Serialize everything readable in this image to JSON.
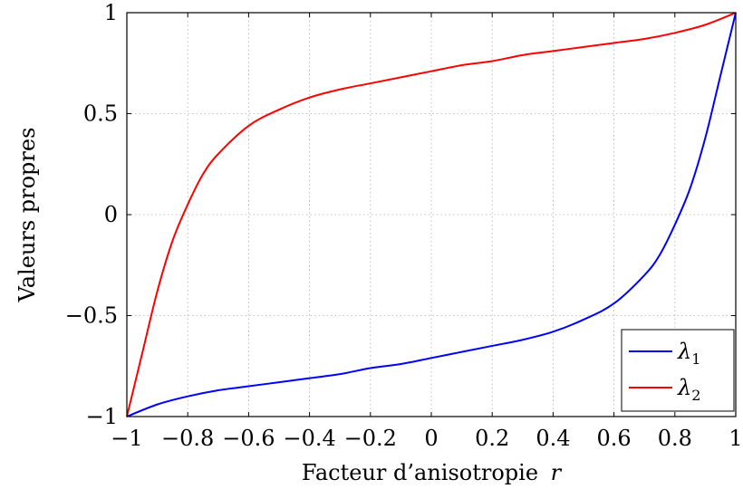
{
  "chart_data": {
    "type": "line",
    "xlabel": "Facteur d’anisotropie",
    "xlabel_var": "r",
    "ylabel": "Valeurs propres",
    "xlim": [
      -1,
      1
    ],
    "ylim": [
      -1,
      1
    ],
    "grid": true,
    "legend_position": "bottom-right",
    "x_ticks": [
      -1,
      -0.8,
      -0.6,
      -0.4,
      -0.2,
      0,
      0.2,
      0.4,
      0.6,
      0.8,
      1
    ],
    "x_tick_labels": [
      "−1",
      "−0.8",
      "−0.6",
      "−0.4",
      "−0.2",
      "0",
      "0.2",
      "0.4",
      "0.6",
      "0.8",
      "1"
    ],
    "y_ticks": [
      -1,
      -0.5,
      0,
      0.5,
      1
    ],
    "y_tick_labels": [
      "−1",
      "−0.5",
      "0",
      "0.5",
      "1"
    ],
    "series": [
      {
        "name": "λ1",
        "label_main": "λ",
        "label_sub": "1",
        "color": "#0000ff",
        "x": [
          -1,
          -0.9,
          -0.8,
          -0.7,
          -0.6,
          -0.5,
          -0.4,
          -0.3,
          -0.2,
          -0.1,
          0,
          0.1,
          0.2,
          0.3,
          0.4,
          0.5,
          0.6,
          0.7,
          0.75,
          0.8,
          0.85,
          0.9,
          0.95,
          1
        ],
        "values": [
          -1,
          -0.94,
          -0.9,
          -0.87,
          -0.85,
          -0.83,
          -0.81,
          -0.79,
          -0.76,
          -0.74,
          -0.71,
          -0.68,
          -0.65,
          -0.62,
          -0.58,
          -0.52,
          -0.44,
          -0.3,
          -0.2,
          -0.05,
          0.13,
          0.38,
          0.69,
          1
        ]
      },
      {
        "name": "λ2",
        "label_main": "λ",
        "label_sub": "2",
        "color": "#ff0000",
        "x": [
          -1,
          -0.95,
          -0.9,
          -0.85,
          -0.8,
          -0.75,
          -0.7,
          -0.6,
          -0.5,
          -0.4,
          -0.3,
          -0.2,
          -0.1,
          0,
          0.1,
          0.2,
          0.3,
          0.4,
          0.5,
          0.6,
          0.7,
          0.8,
          0.9,
          1
        ],
        "values": [
          -1,
          -0.69,
          -0.38,
          -0.13,
          0.05,
          0.2,
          0.3,
          0.44,
          0.52,
          0.58,
          0.62,
          0.65,
          0.68,
          0.71,
          0.74,
          0.76,
          0.79,
          0.81,
          0.83,
          0.85,
          0.87,
          0.9,
          0.94,
          1
        ]
      }
    ]
  }
}
